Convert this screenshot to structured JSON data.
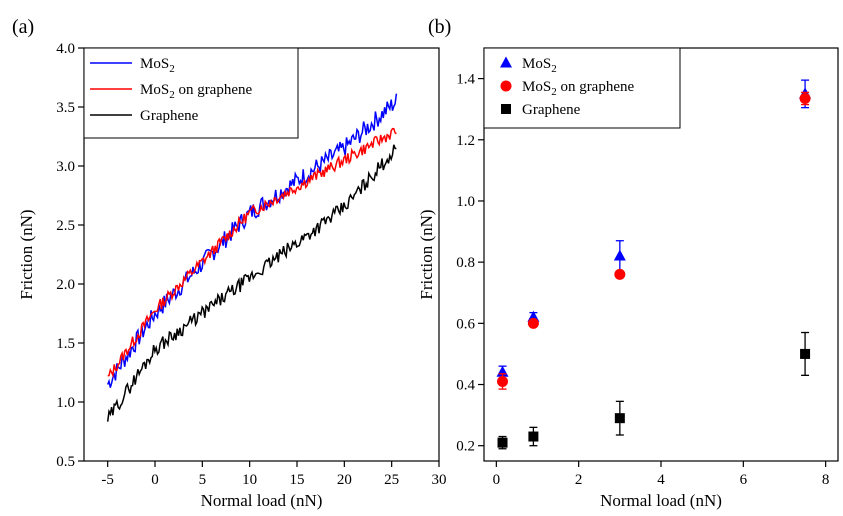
{
  "chart_data": [
    {
      "panel": "(a)",
      "type": "line",
      "title": "",
      "xlabel": "Normal load (nN)",
      "ylabel": "Friction (nN)",
      "xlim": [
        -7.5,
        30
      ],
      "ylim": [
        0.5,
        4.0
      ],
      "xticks": [
        -5,
        0,
        5,
        10,
        15,
        20,
        25,
        30
      ],
      "yticks": [
        0.5,
        1.0,
        1.5,
        2.0,
        2.5,
        3.0,
        3.5,
        4.0
      ],
      "legend_position": "top-left",
      "series": [
        {
          "name": "MoS",
          "subscript": "2",
          "color": "#0000ff",
          "x_start": -5,
          "x_end": 25.5,
          "y_start": 1.15,
          "y_end": 3.55,
          "noise": 0.08,
          "seed": 7,
          "anchors": [
            [
              -5,
              1.15
            ],
            [
              0,
              1.75
            ],
            [
              10,
              2.6
            ],
            [
              20,
              3.15
            ],
            [
              25.5,
              3.55
            ]
          ]
        },
        {
          "name": "MoS",
          "subscript": "2",
          "suffix": " on graphene",
          "color": "#ff0000",
          "x_start": -5,
          "x_end": 25.5,
          "y_start": 1.2,
          "y_end": 3.3,
          "noise": 0.05,
          "seed": 13,
          "anchors": [
            [
              -5,
              1.2
            ],
            [
              0,
              1.78
            ],
            [
              10,
              2.6
            ],
            [
              20,
              3.05
            ],
            [
              25.5,
              3.3
            ]
          ]
        },
        {
          "name": "Graphene",
          "color": "#000000",
          "x_start": -5,
          "x_end": 25.5,
          "y_start": 0.85,
          "y_end": 3.15,
          "noise": 0.06,
          "seed": 29,
          "anchors": [
            [
              -5,
              0.85
            ],
            [
              0,
              1.45
            ],
            [
              10,
              2.05
            ],
            [
              20,
              2.65
            ],
            [
              25.5,
              3.15
            ]
          ]
        }
      ]
    },
    {
      "panel": "(b)",
      "type": "scatter",
      "title": "",
      "xlabel": "Normal load (nN)",
      "ylabel": "Friction (nN)",
      "xlim": [
        -0.3,
        8.3
      ],
      "ylim": [
        0.15,
        1.5
      ],
      "xticks": [
        0,
        2,
        4,
        6,
        8
      ],
      "yticks": [
        0.2,
        0.4,
        0.6,
        0.8,
        1.0,
        1.2,
        1.4
      ],
      "legend_position": "top-left",
      "series": [
        {
          "name": "MoS",
          "subscript": "2",
          "marker": "triangle",
          "color": "#0000ff",
          "x": [
            0.15,
            0.9,
            3.0,
            7.5
          ],
          "y": [
            0.44,
            0.62,
            0.82,
            1.35
          ],
          "yerr": [
            0.02,
            0.015,
            0.05,
            0.045
          ]
        },
        {
          "name": "MoS",
          "subscript": "2",
          "suffix": " on graphene",
          "marker": "circle",
          "color": "#ff0000",
          "x": [
            0.15,
            0.9,
            3.0,
            7.5
          ],
          "y": [
            0.41,
            0.6,
            0.76,
            1.335
          ],
          "yerr": [
            0.025,
            0.01,
            0.01,
            0.02
          ]
        },
        {
          "name": "Graphene",
          "marker": "square",
          "color": "#000000",
          "x": [
            0.15,
            0.9,
            3.0,
            7.5
          ],
          "y": [
            0.21,
            0.23,
            0.29,
            0.5
          ],
          "yerr": [
            0.02,
            0.03,
            0.055,
            0.07
          ]
        }
      ]
    }
  ]
}
